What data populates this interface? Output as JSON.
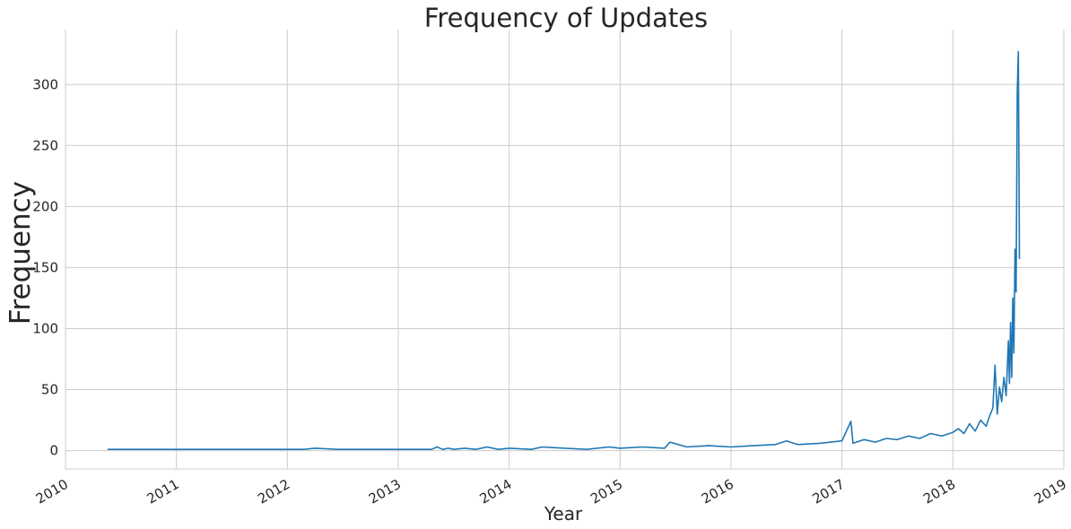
{
  "chart_data": {
    "type": "line",
    "title": "Frequency of Updates",
    "xlabel": "Year",
    "ylabel": "Frequency",
    "x_ticks": [
      "2010",
      "2011",
      "2012",
      "2013",
      "2014",
      "2015",
      "2016",
      "2017",
      "2018",
      "2019"
    ],
    "y_ticks": [
      "0",
      "50",
      "100",
      "150",
      "200",
      "250",
      "300"
    ],
    "xlim": [
      2010.0,
      2019.0
    ],
    "ylim": [
      -15,
      345
    ],
    "grid": true,
    "series": [
      {
        "color": "#1f77b4",
        "x": [
          2010.38,
          2011.0,
          2011.5,
          2012.0,
          2012.15,
          2012.25,
          2012.35,
          2012.45,
          2013.0,
          2013.3,
          2013.35,
          2013.4,
          2013.45,
          2013.5,
          2013.6,
          2013.7,
          2013.8,
          2013.9,
          2014.0,
          2014.2,
          2014.3,
          2014.5,
          2014.7,
          2014.9,
          2015.0,
          2015.2,
          2015.4,
          2015.45,
          2015.6,
          2015.8,
          2016.0,
          2016.2,
          2016.4,
          2016.5,
          2016.6,
          2016.8,
          2017.0,
          2017.08,
          2017.1,
          2017.2,
          2017.3,
          2017.4,
          2017.5,
          2017.6,
          2017.7,
          2017.8,
          2017.9,
          2018.0,
          2018.05,
          2018.1,
          2018.15,
          2018.2,
          2018.25,
          2018.3,
          2018.33,
          2018.36,
          2018.38,
          2018.4,
          2018.42,
          2018.44,
          2018.46,
          2018.48,
          2018.5,
          2018.51,
          2018.52,
          2018.53,
          2018.54,
          2018.55,
          2018.56,
          2018.57,
          2018.58,
          2018.59,
          2018.6
        ],
        "y": [
          1,
          1,
          1,
          1,
          1,
          2,
          1.5,
          1,
          1,
          1,
          3,
          1,
          2,
          1,
          2,
          1,
          3,
          1,
          2,
          1,
          3,
          2,
          1,
          3,
          2,
          3,
          2,
          7,
          3,
          4,
          3,
          4,
          5,
          8,
          5,
          6,
          8,
          24,
          6,
          9,
          7,
          10,
          9,
          12,
          10,
          14,
          12,
          15,
          18,
          14,
          22,
          16,
          25,
          20,
          28,
          35,
          70,
          30,
          52,
          40,
          60,
          45,
          90,
          55,
          105,
          60,
          125,
          80,
          165,
          130,
          295,
          327,
          157
        ]
      }
    ]
  }
}
